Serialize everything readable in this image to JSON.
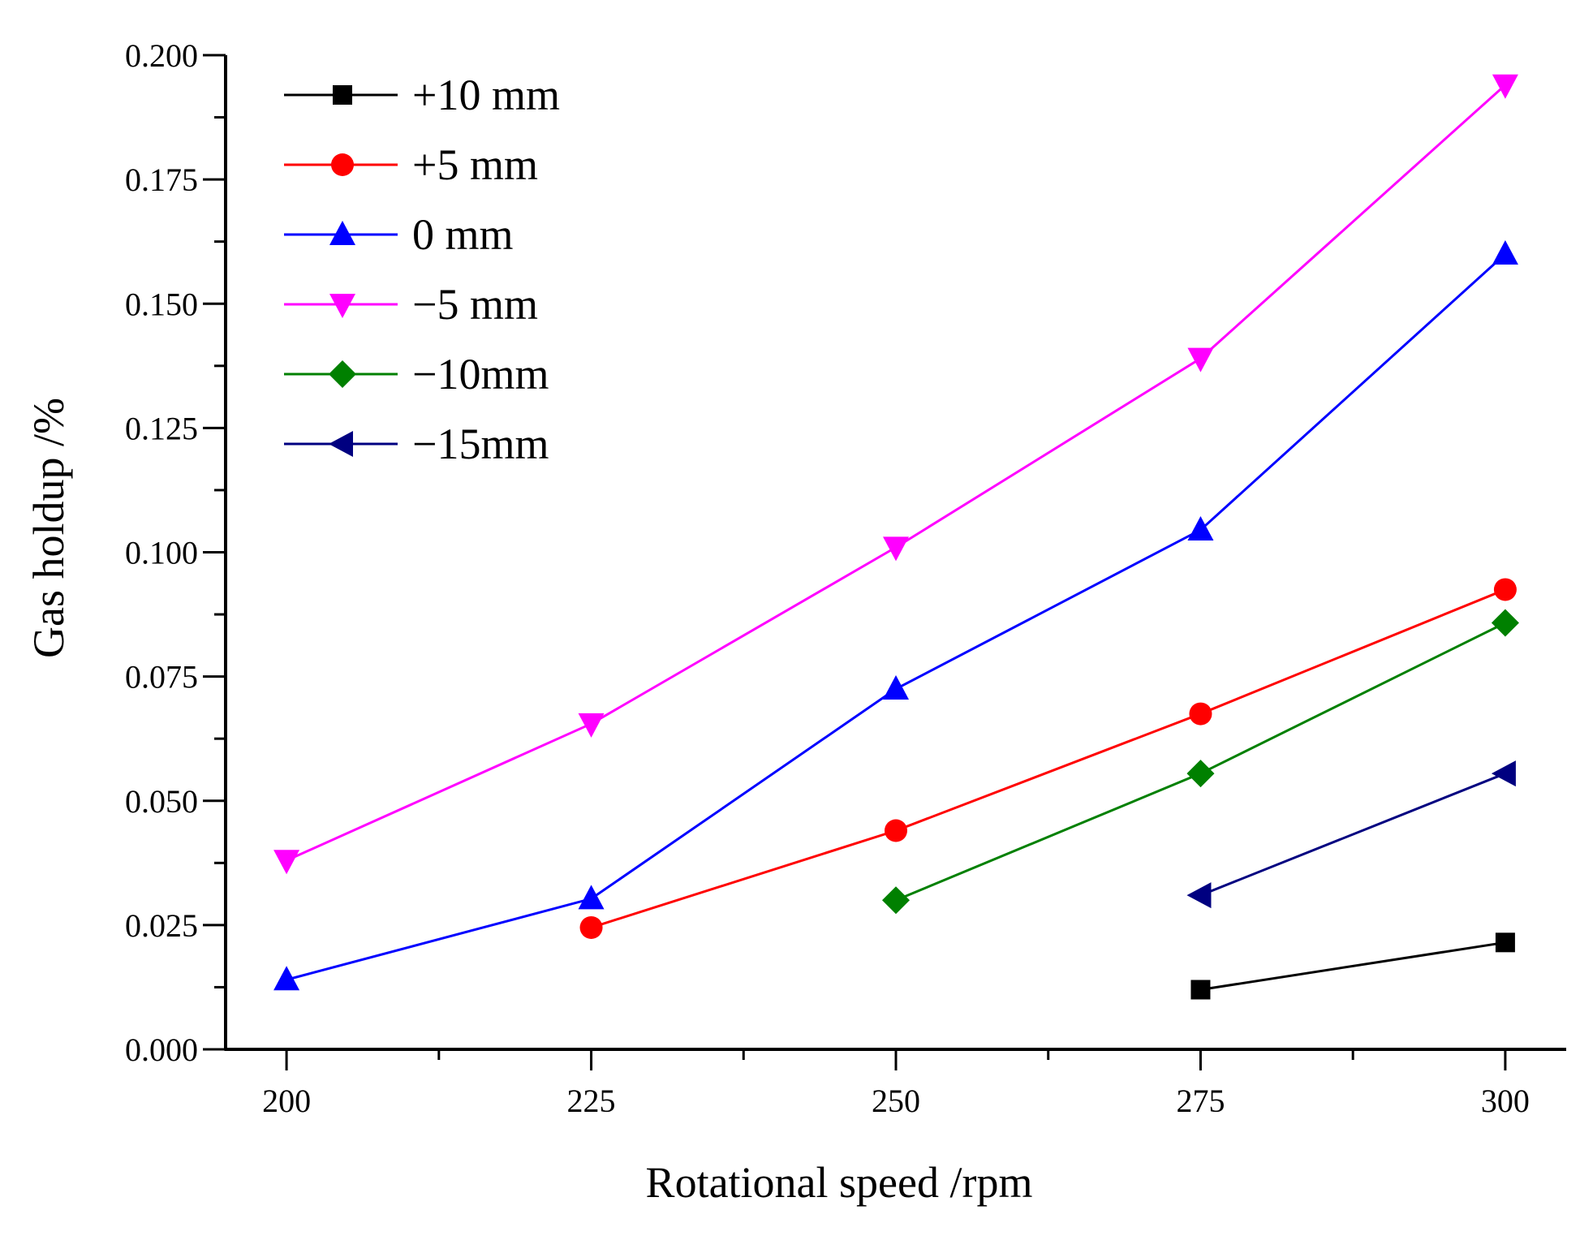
{
  "chart_data": {
    "type": "line",
    "title": "",
    "xlabel": "Rotational speed /rpm",
    "ylabel": "Gas holdup /%",
    "xlim": [
      195,
      305
    ],
    "ylim": [
      0,
      0.2
    ],
    "xticks": [
      200,
      225,
      250,
      275,
      300
    ],
    "xtick_labels": [
      "200",
      "225",
      "250",
      "275",
      "300"
    ],
    "x_minor_ticks": [
      212.5,
      237.5,
      262.5,
      287.5
    ],
    "yticks": [
      0,
      0.025,
      0.05,
      0.075,
      0.1,
      0.125,
      0.15,
      0.175,
      0.2
    ],
    "ytick_labels": [
      "0.000",
      "0.025",
      "0.050",
      "0.075",
      "0.100",
      "0.125",
      "0.150",
      "0.175",
      "0.200"
    ],
    "y_minor_ticks": [
      0.0125,
      0.0375,
      0.0625,
      0.0875,
      0.1125,
      0.1375,
      0.1625,
      0.1875
    ],
    "grid": false,
    "legend_position": "top-left",
    "series": [
      {
        "name": "+10 mm",
        "color": "#000000",
        "marker": "square",
        "x": [
          275,
          300
        ],
        "values": [
          0.012,
          0.0215
        ]
      },
      {
        "name": "+5 mm",
        "color": "#ff0000",
        "marker": "circle",
        "x": [
          225,
          250,
          275,
          300
        ],
        "values": [
          0.0245,
          0.044,
          0.0675,
          0.0925
        ]
      },
      {
        "name": "0 mm",
        "color": "#0000ff",
        "marker": "triangle-up",
        "x": [
          200,
          225,
          250,
          275,
          300
        ],
        "values": [
          0.014,
          0.0303,
          0.0725,
          0.1045,
          0.16
        ]
      },
      {
        "name": "−5 mm",
        "color": "#ff00ff",
        "marker": "triangle-down",
        "x": [
          200,
          225,
          250,
          275,
          300
        ],
        "values": [
          0.038,
          0.0655,
          0.101,
          0.139,
          0.194
        ]
      },
      {
        "name": "−10mm",
        "color": "#008000",
        "marker": "diamond",
        "x": [
          250,
          275,
          300
        ],
        "values": [
          0.03,
          0.0555,
          0.0858
        ]
      },
      {
        "name": "−15mm",
        "color": "#000080",
        "marker": "triangle-left",
        "x": [
          275,
          300
        ],
        "values": [
          0.031,
          0.0555
        ]
      }
    ]
  }
}
